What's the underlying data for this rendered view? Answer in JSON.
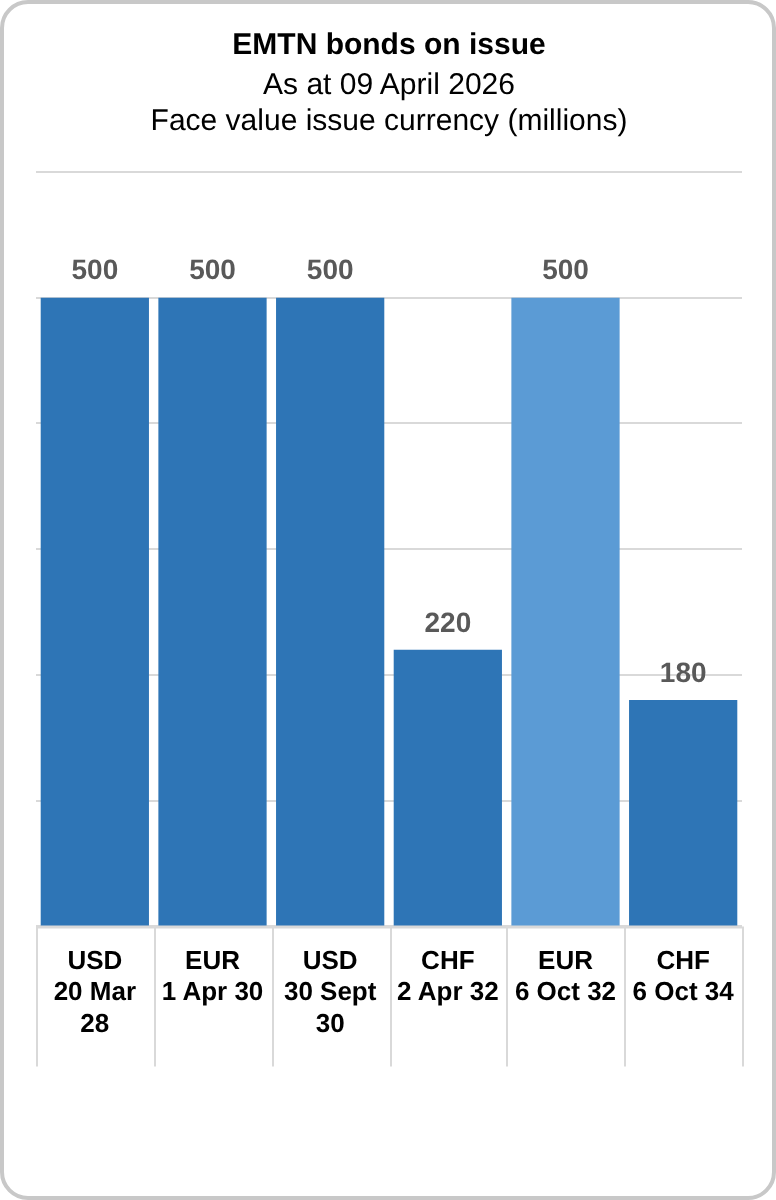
{
  "chart_data": {
    "type": "bar",
    "title": "EMTN bonds on issue",
    "subtitle": "As at 09 April 2026",
    "ylabel": "Face value issue currency (millions)",
    "categories": [
      "USD 20 Mar 28",
      "EUR 1 Apr 30",
      "USD 30 Sept 30",
      "CHF 2 Apr 32",
      "EUR 6 Oct 32",
      "CHF 6 Oct 34"
    ],
    "values": [
      500,
      500,
      500,
      220,
      500,
      180
    ],
    "colors": [
      "#2e75b6",
      "#2e75b6",
      "#2e75b6",
      "#2e75b6",
      "#5b9bd5",
      "#2e75b6"
    ],
    "ylim": [
      0,
      600
    ],
    "yticks": [
      {
        "value": 0,
        "label": null
      },
      {
        "value": 100,
        "label": null
      },
      {
        "value": 200,
        "label": null
      },
      {
        "value": 300,
        "label": null
      },
      {
        "value": 400,
        "label": null
      },
      {
        "value": 500,
        "label": null
      },
      {
        "value": 600,
        "label": null
      }
    ],
    "tick_labels": "x",
    "grid": "y",
    "data_labels": true,
    "legend": false
  }
}
